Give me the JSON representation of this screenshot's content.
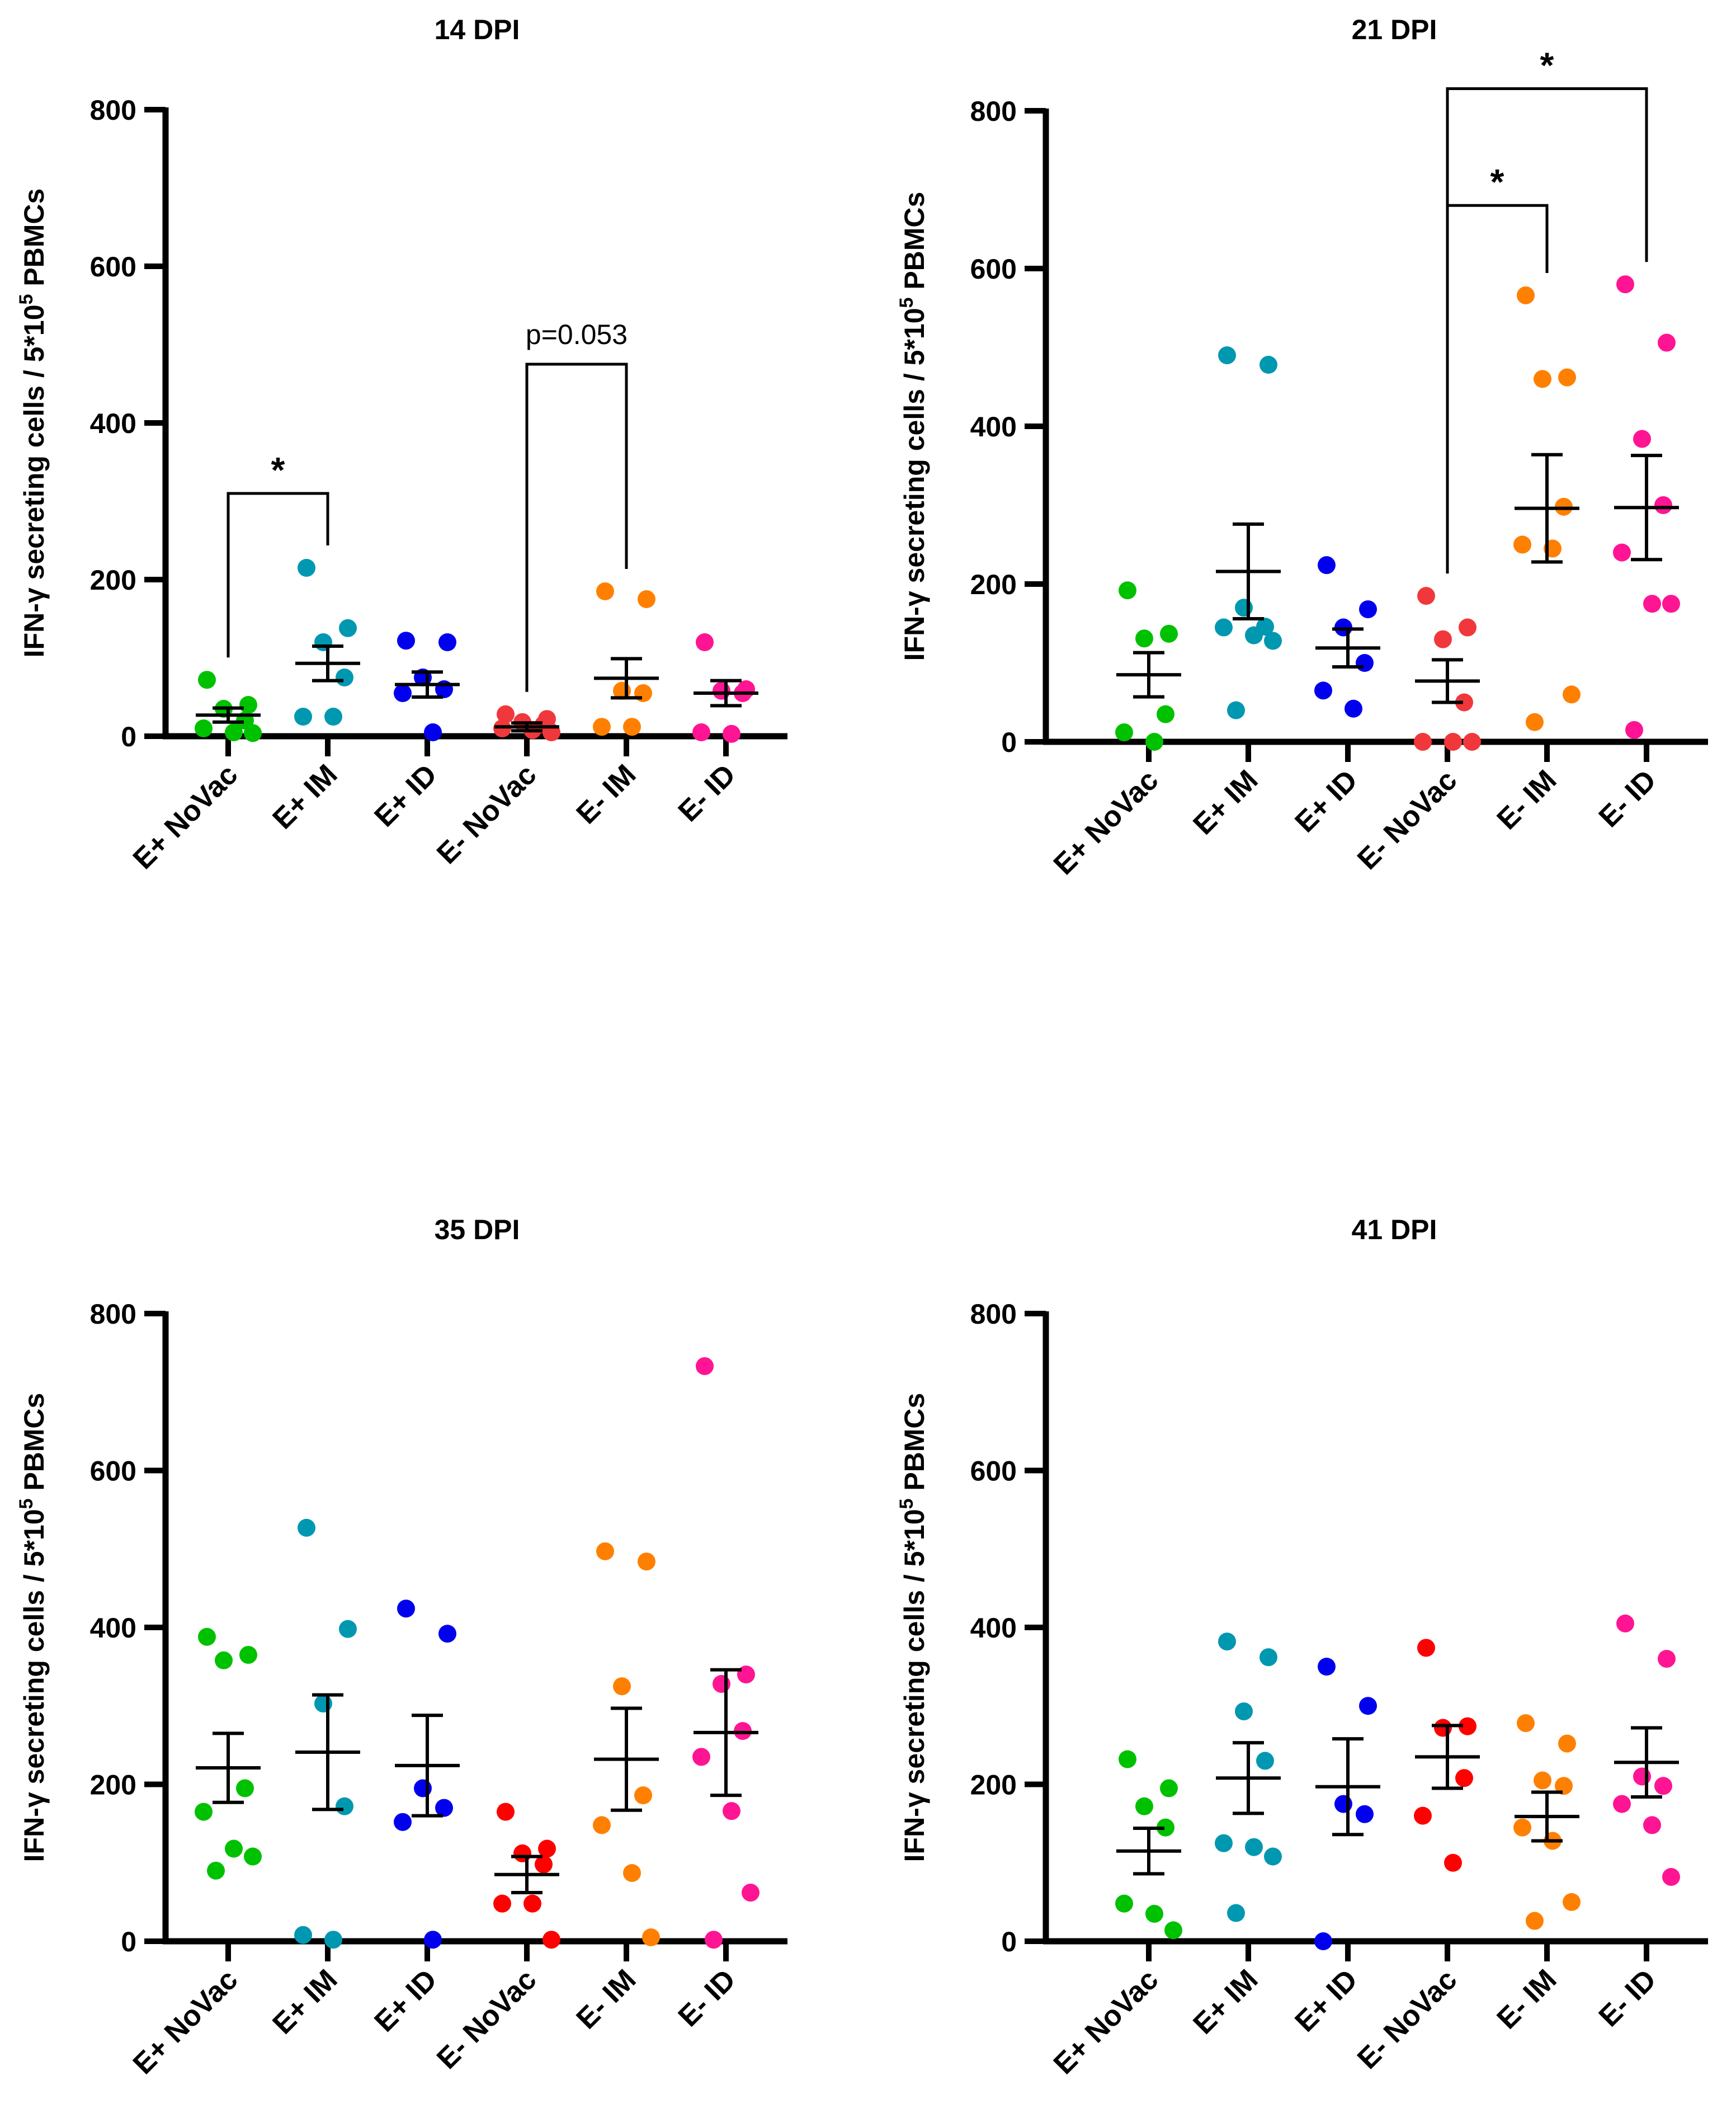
{
  "chart_data": [
    {
      "type": "scatter",
      "title": "14 DPI",
      "xlabel": "",
      "ylabel_main": "IFN-γ secreting cells / 5*10",
      "ylabel_sup": "5",
      "ylabel_tail": " PBMCs",
      "ylim": [
        0,
        800
      ],
      "yticks": [
        "0",
        "200",
        "400",
        "600",
        "800"
      ],
      "categories": [
        "E+ NoVac",
        "E+ IM",
        "E+ ID",
        "E- NoVac",
        "E- IM",
        "E- ID"
      ],
      "colors": [
        "#00c100",
        "#0098b0",
        "#0000ee",
        "#f0383c",
        "#ff8000",
        "#ff1493"
      ],
      "groups": [
        {
          "points": [
            72,
            40,
            35,
            20,
            10,
            5,
            4
          ],
          "mean": 27,
          "sem": 9
        },
        {
          "points": [
            215,
            138,
            120,
            75,
            25,
            25
          ],
          "mean": 93,
          "sem": 22
        },
        {
          "points": [
            122,
            120,
            75,
            60,
            55,
            5
          ],
          "mean": 66,
          "sem": 16
        },
        {
          "points": [
            28,
            22,
            18,
            15,
            10,
            8,
            5
          ],
          "mean": 12,
          "sem": 5
        },
        {
          "points": [
            185,
            175,
            58,
            55,
            12,
            12
          ],
          "mean": 74,
          "sem": 25
        },
        {
          "points": [
            120,
            60,
            58,
            55,
            5,
            3
          ],
          "mean": 55,
          "sem": 16
        }
      ],
      "brackets": [
        {
          "from": 0,
          "to": 1,
          "label": "*",
          "y": 310
        },
        {
          "from": 3,
          "to": 4,
          "label": "p=0.053",
          "y": 475
        }
      ]
    },
    {
      "type": "scatter",
      "title": "21 DPI",
      "xlabel": "",
      "ylabel_main": "IFN-γ secreting cells / 5*10",
      "ylabel_sup": "5",
      "ylabel_tail": " PBMCs",
      "ylim": [
        0,
        800
      ],
      "yticks": [
        "0",
        "200",
        "400",
        "600",
        "800"
      ],
      "categories": [
        "E+ NoVac",
        "E+ IM",
        "E+ ID",
        "E- NoVac",
        "E- IM",
        "E- ID"
      ],
      "colors": [
        "#00c100",
        "#0098b0",
        "#0000ee",
        "#f0383c",
        "#ff8000",
        "#ff1493"
      ],
      "groups": [
        {
          "points": [
            192,
            137,
            131,
            35,
            12,
            0
          ],
          "mean": 85,
          "sem": 28
        },
        {
          "points": [
            490,
            478,
            170,
            146,
            145,
            135,
            128,
            40
          ],
          "mean": 216,
          "sem": 60
        },
        {
          "points": [
            224,
            168,
            145,
            100,
            65,
            42
          ],
          "mean": 119,
          "sem": 24
        },
        {
          "points": [
            185,
            145,
            130,
            50,
            0,
            0,
            0
          ],
          "mean": 77,
          "sem": 27
        },
        {
          "points": [
            566,
            462,
            460,
            298,
            250,
            245,
            60,
            25
          ],
          "mean": 296,
          "sem": 68
        },
        {
          "points": [
            580,
            506,
            384,
            300,
            240,
            175,
            175,
            15
          ],
          "mean": 297,
          "sem": 66
        }
      ],
      "brackets": [
        {
          "from": 3,
          "to": 4,
          "label": "*",
          "y": 680
        },
        {
          "from": 3,
          "to": 5,
          "label": "*",
          "y": 828
        }
      ]
    },
    {
      "type": "scatter",
      "title": "35 DPI",
      "xlabel": "",
      "ylabel_main": "IFN-γ secreting cells / 5*10",
      "ylabel_sup": "5",
      "ylabel_tail": " PBMCs",
      "ylim": [
        0,
        800
      ],
      "yticks": [
        "0",
        "200",
        "400",
        "600",
        "800"
      ],
      "categories": [
        "E+ NoVac",
        "E+ IM",
        "E+ ID",
        "E- NoVac",
        "E- IM",
        "E- ID"
      ],
      "colors": [
        "#00c100",
        "#0098b0",
        "#0000ee",
        "#ff0000",
        "#ff8000",
        "#ff1493"
      ],
      "groups": [
        {
          "points": [
            388,
            365,
            358,
            195,
            165,
            118,
            108,
            90
          ],
          "mean": 221,
          "sem": 44
        },
        {
          "points": [
            527,
            398,
            303,
            172,
            8,
            2
          ],
          "mean": 241,
          "sem": 73
        },
        {
          "points": [
            424,
            392,
            195,
            170,
            152,
            2
          ],
          "mean": 224,
          "sem": 64
        },
        {
          "points": [
            165,
            118,
            112,
            98,
            48,
            48,
            2
          ],
          "mean": 85,
          "sem": 23
        },
        {
          "points": [
            497,
            484,
            325,
            186,
            148,
            87,
            5
          ],
          "mean": 232,
          "sem": 65
        },
        {
          "points": [
            733,
            340,
            328,
            268,
            235,
            166,
            62,
            2
          ],
          "mean": 266,
          "sem": 80
        }
      ],
      "brackets": []
    },
    {
      "type": "scatter",
      "title": "41 DPI",
      "xlabel": "",
      "ylabel_main": "IFN-γ secreting cells / 5*10",
      "ylabel_sup": "5",
      "ylabel_tail": " PBMCs",
      "ylim": [
        0,
        800
      ],
      "yticks": [
        "0",
        "200",
        "400",
        "600",
        "800"
      ],
      "categories": [
        "E+ NoVac",
        "E+ IM",
        "E+ ID",
        "E- NoVac",
        "E- IM",
        "E- ID"
      ],
      "colors": [
        "#00c100",
        "#0098b0",
        "#0000ee",
        "#ff0000",
        "#ff8000",
        "#ff1493"
      ],
      "groups": [
        {
          "points": [
            232,
            195,
            172,
            145,
            48,
            35,
            14
          ],
          "mean": 115,
          "sem": 29
        },
        {
          "points": [
            382,
            362,
            293,
            230,
            125,
            120,
            108,
            36
          ],
          "mean": 208,
          "sem": 45
        },
        {
          "points": [
            350,
            300,
            175,
            162,
            0
          ],
          "mean": 197,
          "sem": 61
        },
        {
          "points": [
            374,
            274,
            272,
            208,
            160,
            100
          ],
          "mean": 235,
          "sem": 40
        },
        {
          "points": [
            278,
            252,
            205,
            198,
            145,
            128,
            50,
            26
          ],
          "mean": 159,
          "sem": 31
        },
        {
          "points": [
            405,
            360,
            210,
            198,
            175,
            148,
            82
          ],
          "mean": 228,
          "sem": 44
        }
      ],
      "brackets": []
    }
  ]
}
